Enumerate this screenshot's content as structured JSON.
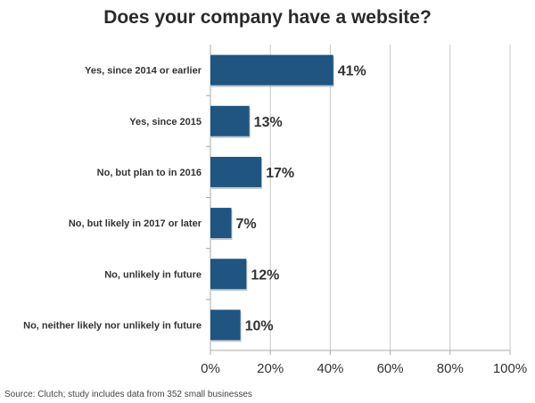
{
  "chart_data": {
    "type": "bar",
    "orientation": "horizontal",
    "title": "Does your company have a website?",
    "categories": [
      "Yes, since 2014 or earlier",
      "Yes, since 2015",
      "No, but plan to in 2016",
      "No, but likely in 2017 or later",
      "No, unlikely in future",
      "No, neither likely nor unlikely in future"
    ],
    "values": [
      41,
      13,
      17,
      7,
      12,
      10
    ],
    "data_labels": [
      "41%",
      "13%",
      "17%",
      "7%",
      "12%",
      "10%"
    ],
    "xlim": [
      0,
      100
    ],
    "xticks": [
      0,
      20,
      40,
      60,
      80,
      100
    ],
    "xtick_labels": [
      "0%",
      "20%",
      "40%",
      "60%",
      "80%",
      "100%"
    ],
    "grid": "vertical",
    "bar_color": "#1f5580",
    "source": "Source: Clutch; study includes data from 352 small businesses"
  }
}
